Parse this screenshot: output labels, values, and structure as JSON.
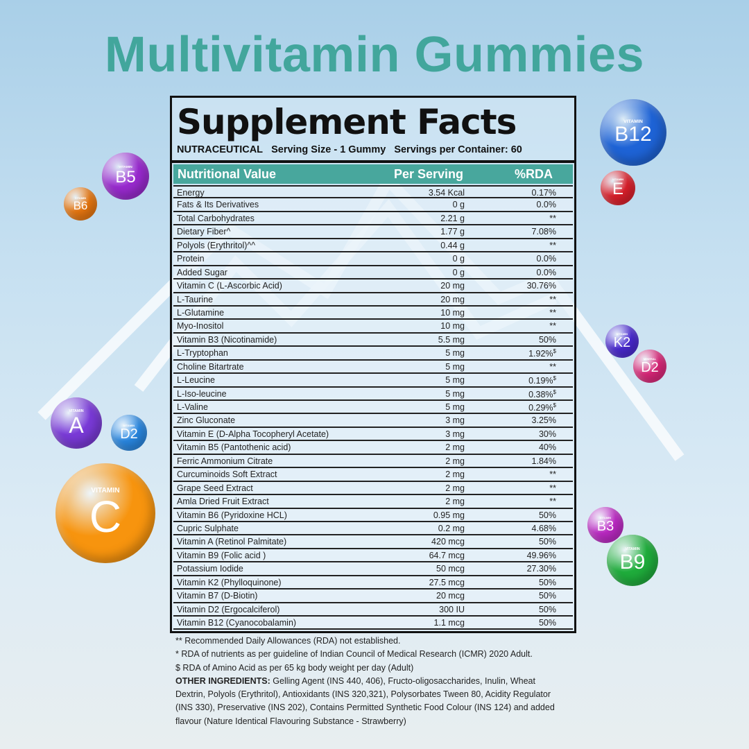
{
  "title": "Multivitamin Gummies",
  "facts": {
    "heading": "Supplement Facts",
    "brand": "NUTRACEUTICAL",
    "serving_size": "Serving Size - 1 Gummy",
    "servings": "Servings per Container: 60",
    "columns": [
      "Nutritional Value",
      "Per Serving",
      "%RDA"
    ],
    "rows": [
      {
        "name": "Energy",
        "amount": "3.54 Kcal",
        "rda": "0.17%"
      },
      {
        "name": "Fats & Its Derivatives",
        "amount": "0 g",
        "rda": "0.0%"
      },
      {
        "name": "Total Carbohydrates",
        "amount": "2.21 g",
        "rda": "**"
      },
      {
        "name": "Dietary Fiber^",
        "amount": "1.77 g",
        "rda": "7.08%"
      },
      {
        "name": "Polyols (Erythritol)^^",
        "amount": "0.44 g",
        "rda": "**"
      },
      {
        "name": "Protein",
        "amount": "0 g",
        "rda": "0.0%"
      },
      {
        "name": "Added Sugar",
        "amount": "0 g",
        "rda": "0.0%"
      },
      {
        "name": "Vitamin C (L-Ascorbic Acid)",
        "amount": "20 mg",
        "rda": "30.76%"
      },
      {
        "name": "L-Taurine",
        "amount": "20 mg",
        "rda": "**"
      },
      {
        "name": "L-Glutamine",
        "amount": "10 mg",
        "rda": "**"
      },
      {
        "name": "Myo-Inositol",
        "amount": "10 mg",
        "rda": "**"
      },
      {
        "name": "Vitamin B3 (Nicotinamide)",
        "amount": "5.5 mg",
        "rda": "50%"
      },
      {
        "name": "L-Tryptophan",
        "amount": "5 mg",
        "rda": "1.92%",
        "mark": "$"
      },
      {
        "name": "Choline Bitartrate",
        "amount": "5 mg",
        "rda": "**"
      },
      {
        "name": "L-Leucine",
        "amount": "5 mg",
        "rda": "0.19%",
        "mark": "$"
      },
      {
        "name": "L-Iso-leucine",
        "amount": "5 mg",
        "rda": "0.38%",
        "mark": "$"
      },
      {
        "name": "L-Valine",
        "amount": "5 mg",
        "rda": "0.29%",
        "mark": "$"
      },
      {
        "name": "Zinc Gluconate",
        "amount": "3 mg",
        "rda": "3.25%"
      },
      {
        "name": "Vitamin E (D-Alpha Tocopheryl Acetate)",
        "amount": "3 mg",
        "rda": "30%"
      },
      {
        "name": "Vitamin B5 (Pantothenic acid)",
        "amount": "2 mg",
        "rda": "40%"
      },
      {
        "name": "Ferric Ammonium Citrate",
        "amount": "2 mg",
        "rda": "1.84%"
      },
      {
        "name": "Curcuminoids Soft Extract",
        "amount": "2 mg",
        "rda": "**"
      },
      {
        "name": "Grape Seed Extract",
        "amount": "2 mg",
        "rda": "**"
      },
      {
        "name": "Amla Dried Fruit Extract",
        "amount": "2 mg",
        "rda": "**"
      },
      {
        "name": "Vitamin B6 (Pyridoxine HCL)",
        "amount": "0.95 mg",
        "rda": "50%"
      },
      {
        "name": "Cupric Sulphate",
        "amount": "0.2 mg",
        "rda": "4.68%"
      },
      {
        "name": "Vitamin A (Retinol Palmitate)",
        "amount": "420 mcg",
        "rda": "50%"
      },
      {
        "name": "Vitamin B9 (Folic acid )",
        "amount": "64.7 mcg",
        "rda": "49.96%"
      },
      {
        "name": "Potassium Iodide",
        "amount": "50 mcg",
        "rda": "27.30%"
      },
      {
        "name": "Vitamin K2 (Phylloquinone)",
        "amount": "27.5 mcg",
        "rda": "50%"
      },
      {
        "name": "Vitamin B7 (D-Biotin)",
        "amount": "20 mcg",
        "rda": "50%"
      },
      {
        "name": "Vitamin D2 (Ergocalciferol)",
        "amount": "300 IU",
        "rda": "50%"
      },
      {
        "name": "Vitamin B12 (Cyanocobalamin)",
        "amount": "1.1 mcg",
        "rda": "50%"
      }
    ]
  },
  "notes": {
    "n1": "** Recommended Daily Allowances (RDA) not established.",
    "n2": "* RDA of nutrients as per guideline of Indian Council of Medical Research (ICMR) 2020 Adult.",
    "n3": "$ RDA of Amino Acid as per 65 kg body weight per day (Adult)",
    "other_label": "OTHER INGREDIENTS:",
    "other_text": " Gelling Agent (INS 440, 406), Fructo-oligosaccharides, Inulin, Wheat Dextrin, Polyols (Erythritol), Antioxidants (INS 320,321), Polysorbates Tween 80, Acidity Regulator (INS 330), Preservative (INS 202), Contains Permitted Synthetic Food Colour (INS 124) and added flavour (Nature Identical Flavouring Substance - Strawberry)"
  },
  "bubbles": [
    {
      "small": "VITAMIN",
      "label": "B12",
      "color": "#1e63d6"
    },
    {
      "small": "VITAMIN",
      "label": "E",
      "color": "#e0202c"
    },
    {
      "small": "VITAMIN",
      "label": "B5",
      "color": "#9a2ad0"
    },
    {
      "small": "VITAMIN",
      "label": "B6",
      "color": "#ee7a10"
    },
    {
      "small": "VITAMIN",
      "label": "K2",
      "color": "#4b2ad6"
    },
    {
      "small": "MINERAL",
      "label": "D2",
      "color": "#e0287c"
    },
    {
      "small": "VITAMIN",
      "label": "A",
      "color": "#7a3ad8"
    },
    {
      "small": "VITAMIN",
      "label": "D2",
      "color": "#2a8ae6"
    },
    {
      "small": "VITAMIN",
      "label": "C",
      "color": "#f7940e"
    },
    {
      "small": "VITAMIN",
      "label": "B3",
      "color": "#c02ac8"
    },
    {
      "small": "VITAMIN",
      "label": "B9",
      "color": "#1fae3c"
    }
  ]
}
